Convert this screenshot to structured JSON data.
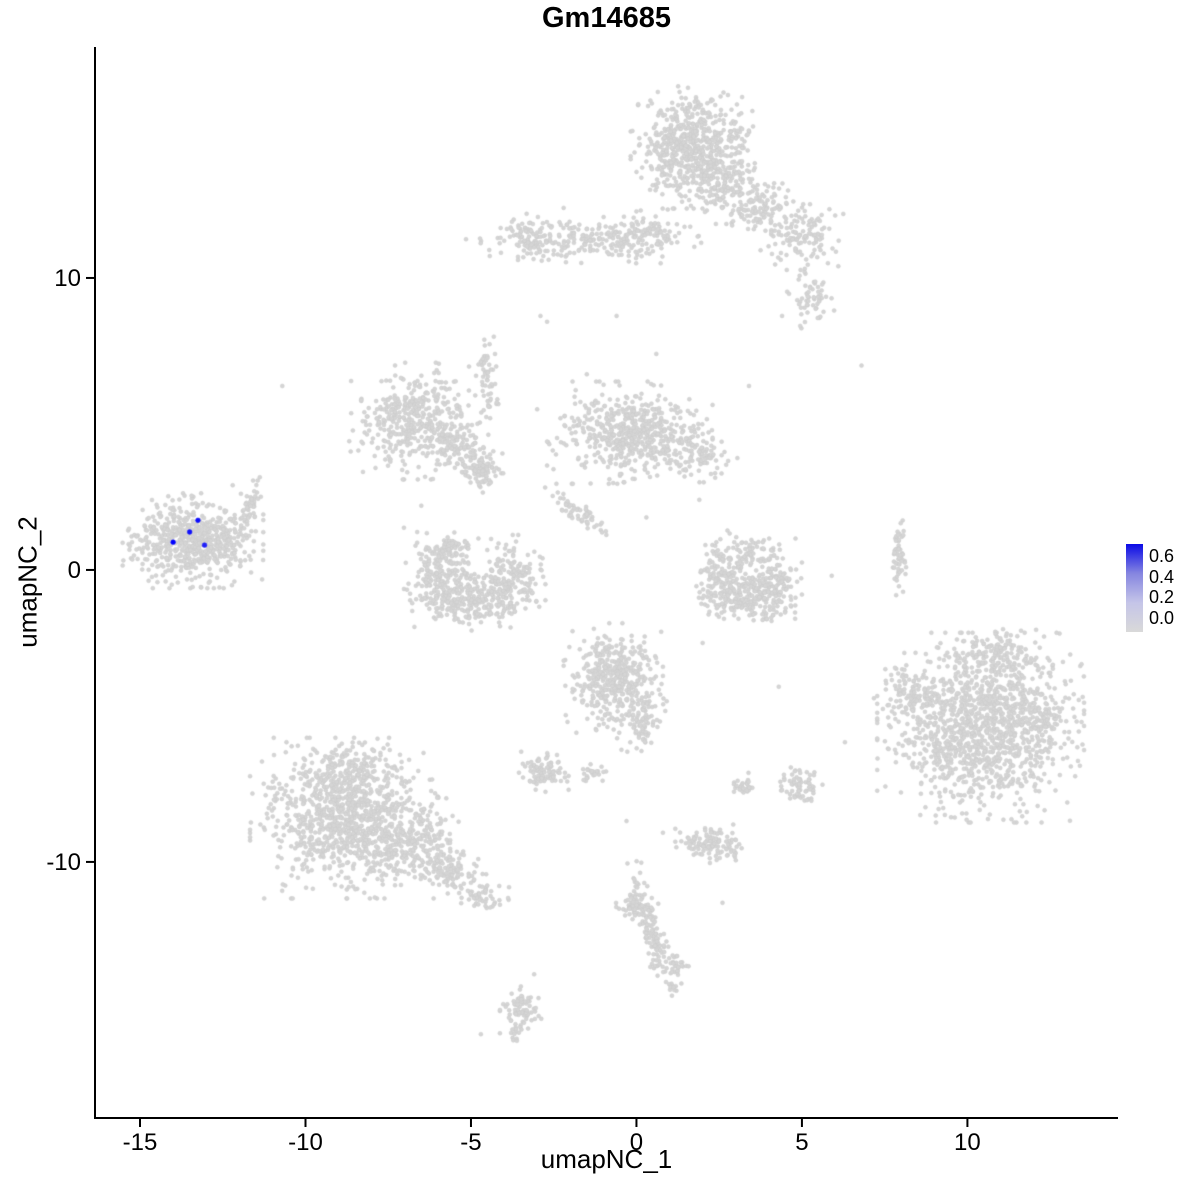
{
  "chart_data": {
    "type": "scatter",
    "title": "Gm14685",
    "xlabel": "umapNC_1",
    "ylabel": "umapNC_2",
    "xlim": [
      -16.36,
      14.55
    ],
    "ylim": [
      -18.77,
      17.91
    ],
    "xticks": [
      "-15",
      "-10",
      "-5",
      "0",
      "5",
      "10"
    ],
    "yticks": [
      "10",
      "0",
      "-10"
    ],
    "grid": false,
    "point_color": "#D5D5D5",
    "point_stroke": "#CBCBCB",
    "axis_color": "#000000",
    "legend": {
      "position": "right",
      "ticks": [
        "0.6",
        "0.4",
        "0.2",
        "0.0"
      ],
      "vmax": 0.65,
      "gradient": [
        "#0B0BE6",
        "#8585E0",
        "#C5C5E8",
        "#D9D9D9"
      ],
      "low_color": "#D5D5D5",
      "high_color": "#0000FF"
    },
    "seed": 42,
    "clusters": [
      {
        "cx": 1.7,
        "cy": 14.5,
        "sx": 0.75,
        "sy": 0.85,
        "n": 650
      },
      {
        "cx": 2.6,
        "cy": 13.1,
        "sx": 0.5,
        "sy": 0.5,
        "n": 150
      },
      {
        "cx": 3.9,
        "cy": 12.3,
        "sx": 0.45,
        "sy": 0.45,
        "n": 110
      },
      {
        "cx": 5.0,
        "cy": 11.4,
        "sx": 0.5,
        "sy": 0.45,
        "n": 110
      },
      {
        "cx": 5.3,
        "cy": 9.4,
        "sx": 0.3,
        "sy": 0.45,
        "n": 60
      },
      {
        "cx": -1.4,
        "cy": 11.3,
        "sx": 1.5,
        "sy": 0.32,
        "n": 240
      },
      {
        "cx": -3.2,
        "cy": 11.4,
        "sx": 0.35,
        "sy": 0.35,
        "n": 70
      },
      {
        "cx": 0.4,
        "cy": 11.6,
        "sx": 0.5,
        "sy": 0.3,
        "n": 60
      },
      {
        "cx": -4.5,
        "cy": 6.6,
        "sx": 0.14,
        "sy": 0.65,
        "n": 55
      },
      {
        "cx": -6.6,
        "cy": 5.1,
        "sx": 0.85,
        "sy": 0.8,
        "n": 430
      },
      {
        "cx": -5.4,
        "cy": 4.2,
        "sx": 0.5,
        "sy": 0.35,
        "n": 90,
        "rot": -30
      },
      {
        "cx": -4.7,
        "cy": 3.4,
        "sx": 0.3,
        "sy": 0.3,
        "n": 90
      },
      {
        "cx": -0.2,
        "cy": 4.7,
        "sx": 1.0,
        "sy": 0.7,
        "n": 560
      },
      {
        "cx": 1.8,
        "cy": 4.0,
        "sx": 0.5,
        "sy": 0.4,
        "n": 90
      },
      {
        "cx": -1.8,
        "cy": 2.0,
        "sx": 0.55,
        "sy": 0.12,
        "n": 60,
        "rot": -38
      },
      {
        "cx": -5.9,
        "cy": -0.2,
        "sx": 0.45,
        "sy": 0.7,
        "n": 190
      },
      {
        "cx": -4.9,
        "cy": -1.0,
        "sx": 0.75,
        "sy": 0.45,
        "n": 260
      },
      {
        "cx": -3.7,
        "cy": -0.3,
        "sx": 0.38,
        "sy": 0.6,
        "n": 150
      },
      {
        "cx": -5.6,
        "cy": 0.7,
        "sx": 0.3,
        "sy": 0.25,
        "n": 60
      },
      {
        "cx": -13.4,
        "cy": 1.0,
        "sx": 0.85,
        "sy": 0.65,
        "n": 600
      },
      {
        "cx": -11.7,
        "cy": 2.1,
        "sx": 0.12,
        "sy": 0.5,
        "n": 50,
        "rot": -15
      },
      {
        "cx": 2.5,
        "cy": -0.3,
        "sx": 0.35,
        "sy": 0.55,
        "n": 120
      },
      {
        "cx": 3.3,
        "cy": -1.0,
        "sx": 0.6,
        "sy": 0.38,
        "n": 200
      },
      {
        "cx": 4.2,
        "cy": -0.3,
        "sx": 0.32,
        "sy": 0.55,
        "n": 130
      },
      {
        "cx": 3.2,
        "cy": 0.6,
        "sx": 0.5,
        "sy": 0.3,
        "n": 70
      },
      {
        "cx": 7.95,
        "cy": 0.5,
        "sx": 0.1,
        "sy": 0.55,
        "n": 60
      },
      {
        "cx": -0.7,
        "cy": -3.7,
        "sx": 0.6,
        "sy": 0.75,
        "n": 430
      },
      {
        "cx": 0.2,
        "cy": -5.2,
        "sx": 0.25,
        "sy": 0.45,
        "n": 80,
        "rot": -20
      },
      {
        "cx": -2.8,
        "cy": -6.9,
        "sx": 0.3,
        "sy": 0.28,
        "n": 100
      },
      {
        "cx": -1.3,
        "cy": -6.9,
        "sx": 0.2,
        "sy": 0.15,
        "n": 25
      },
      {
        "cx": 4.95,
        "cy": -7.4,
        "sx": 0.28,
        "sy": 0.3,
        "n": 70
      },
      {
        "cx": 3.3,
        "cy": -7.4,
        "sx": 0.2,
        "sy": 0.18,
        "n": 30
      },
      {
        "cx": 2.3,
        "cy": -9.4,
        "sx": 0.45,
        "sy": 0.28,
        "n": 120
      },
      {
        "cx": -8.8,
        "cy": -8.5,
        "sx": 1.15,
        "sy": 1.1,
        "n": 1000
      },
      {
        "cx": -6.8,
        "cy": -9.3,
        "sx": 0.6,
        "sy": 0.6,
        "n": 220
      },
      {
        "cx": -5.6,
        "cy": -10.3,
        "sx": 0.5,
        "sy": 0.3,
        "n": 110,
        "rot": -25
      },
      {
        "cx": -4.6,
        "cy": -11.2,
        "sx": 0.3,
        "sy": 0.25,
        "n": 50
      },
      {
        "cx": -8.6,
        "cy": -6.7,
        "sx": 0.6,
        "sy": 0.4,
        "n": 120
      },
      {
        "cx": 0.4,
        "cy": -12.2,
        "sx": 0.18,
        "sy": 0.9,
        "n": 130,
        "rot": 15
      },
      {
        "cx": 0.0,
        "cy": -11.5,
        "sx": 0.25,
        "sy": 0.2,
        "n": 50
      },
      {
        "cx": 1.2,
        "cy": -13.6,
        "sx": 0.15,
        "sy": 0.3,
        "n": 30
      },
      {
        "cx": 1.1,
        "cy": -14.3,
        "sx": 0.1,
        "sy": 0.12,
        "n": 10
      },
      {
        "cx": -3.5,
        "cy": -15.1,
        "sx": 0.25,
        "sy": 0.5,
        "n": 90
      },
      {
        "cx": 10.4,
        "cy": -5.4,
        "sx": 1.25,
        "sy": 1.3,
        "n": 1250
      },
      {
        "cx": 10.9,
        "cy": -2.9,
        "sx": 0.7,
        "sy": 0.4,
        "n": 130
      },
      {
        "cx": 8.3,
        "cy": -4.3,
        "sx": 0.45,
        "sy": 0.5,
        "n": 90
      },
      {
        "cx": 12.3,
        "cy": -5.0,
        "sx": 0.4,
        "sy": 0.6,
        "n": 90
      }
    ],
    "singles": [
      [
        6.8,
        7.0
      ],
      [
        -10.7,
        6.3
      ],
      [
        -2.9,
        8.7
      ],
      [
        -2.7,
        8.5
      ],
      [
        -0.6,
        8.7
      ],
      [
        1.9,
        2.4
      ],
      [
        0.3,
        1.8
      ],
      [
        5.9,
        -0.2
      ],
      [
        2.0,
        -2.5
      ],
      [
        6.3,
        -5.9
      ],
      [
        -4.7,
        -15.9
      ],
      [
        0.8,
        -9.0
      ],
      [
        -0.3,
        -8.6
      ],
      [
        2.6,
        -11.4
      ],
      [
        -12.2,
        2.9
      ],
      [
        -3.0,
        5.5
      ],
      [
        -1.5,
        6.7
      ],
      [
        0.6,
        7.4
      ],
      [
        4.4,
        8.7
      ],
      [
        3.4,
        6.3
      ],
      [
        -2.2,
        12.4
      ],
      [
        6.1,
        10.4
      ],
      [
        4.3,
        -4.0
      ],
      [
        -6.5,
        2.2
      ],
      [
        -12.6,
        -0.6
      ]
    ],
    "highlighted_points": [
      {
        "x": -14.0,
        "y": 0.95,
        "value": 0.65
      },
      {
        "x": -13.5,
        "y": 1.3,
        "value": 0.6
      },
      {
        "x": -13.25,
        "y": 1.7,
        "value": 0.62
      },
      {
        "x": -13.05,
        "y": 0.85,
        "value": 0.55
      }
    ]
  }
}
